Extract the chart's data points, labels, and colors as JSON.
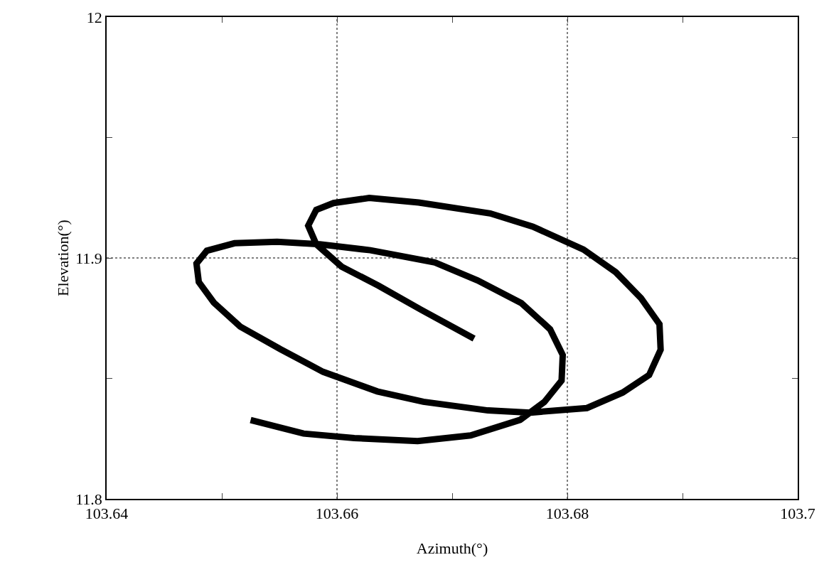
{
  "chart_data": {
    "type": "line",
    "xlabel": "Azimuth(°)",
    "ylabel": "Elevation(°)",
    "xlim": [
      103.64,
      103.7
    ],
    "ylim": [
      11.8,
      12
    ],
    "xticks": [
      103.64,
      {
        "value": 103.65,
        "label": null
      },
      103.66,
      {
        "value": 103.67,
        "label": null
      },
      103.68,
      {
        "value": 103.69,
        "label": null
      },
      103.7
    ],
    "yticks": [
      11.8,
      {
        "value": 11.85,
        "label": null
      },
      11.9,
      {
        "value": 11.95,
        "label": null
      },
      12
    ],
    "grid": true,
    "marker": "none",
    "line_style": "solid",
    "series": [
      {
        "color": "#000000",
        "x": [
          103.6719,
          103.6673,
          103.6636,
          103.6604,
          103.6582,
          103.6575,
          103.6582,
          103.6597,
          103.6628,
          103.6671,
          103.6733,
          103.677,
          103.6814,
          103.6842,
          103.6864,
          103.688,
          103.6881,
          103.6871,
          103.6848,
          103.6817,
          103.6768,
          103.6731,
          103.6675,
          103.6635,
          103.6588,
          103.6551,
          103.6516,
          103.6493,
          103.648,
          103.6478,
          103.6487,
          103.6511,
          103.6548,
          103.6585,
          103.6629,
          103.6685,
          103.6722,
          103.676,
          103.6785,
          103.6796,
          103.6795,
          103.678,
          103.6759,
          103.6716,
          103.667,
          103.6615,
          103.6571,
          103.6525
        ],
        "values": [
          11.8665,
          11.8785,
          11.8885,
          11.8964,
          11.9057,
          11.9134,
          11.92,
          11.9228,
          11.9249,
          11.923,
          11.9185,
          11.913,
          11.9035,
          11.8941,
          11.8833,
          11.8725,
          11.8619,
          11.8514,
          11.8441,
          11.8377,
          11.8358,
          11.8367,
          11.8403,
          11.8446,
          11.8527,
          11.8621,
          11.8715,
          11.8815,
          11.89,
          11.8977,
          11.903,
          11.9061,
          11.9067,
          11.9057,
          11.9032,
          11.8981,
          11.8907,
          11.8813,
          11.8704,
          11.8597,
          11.8491,
          11.8402,
          11.8328,
          11.8263,
          11.824,
          11.8252,
          11.8271,
          11.8327
        ]
      }
    ]
  }
}
